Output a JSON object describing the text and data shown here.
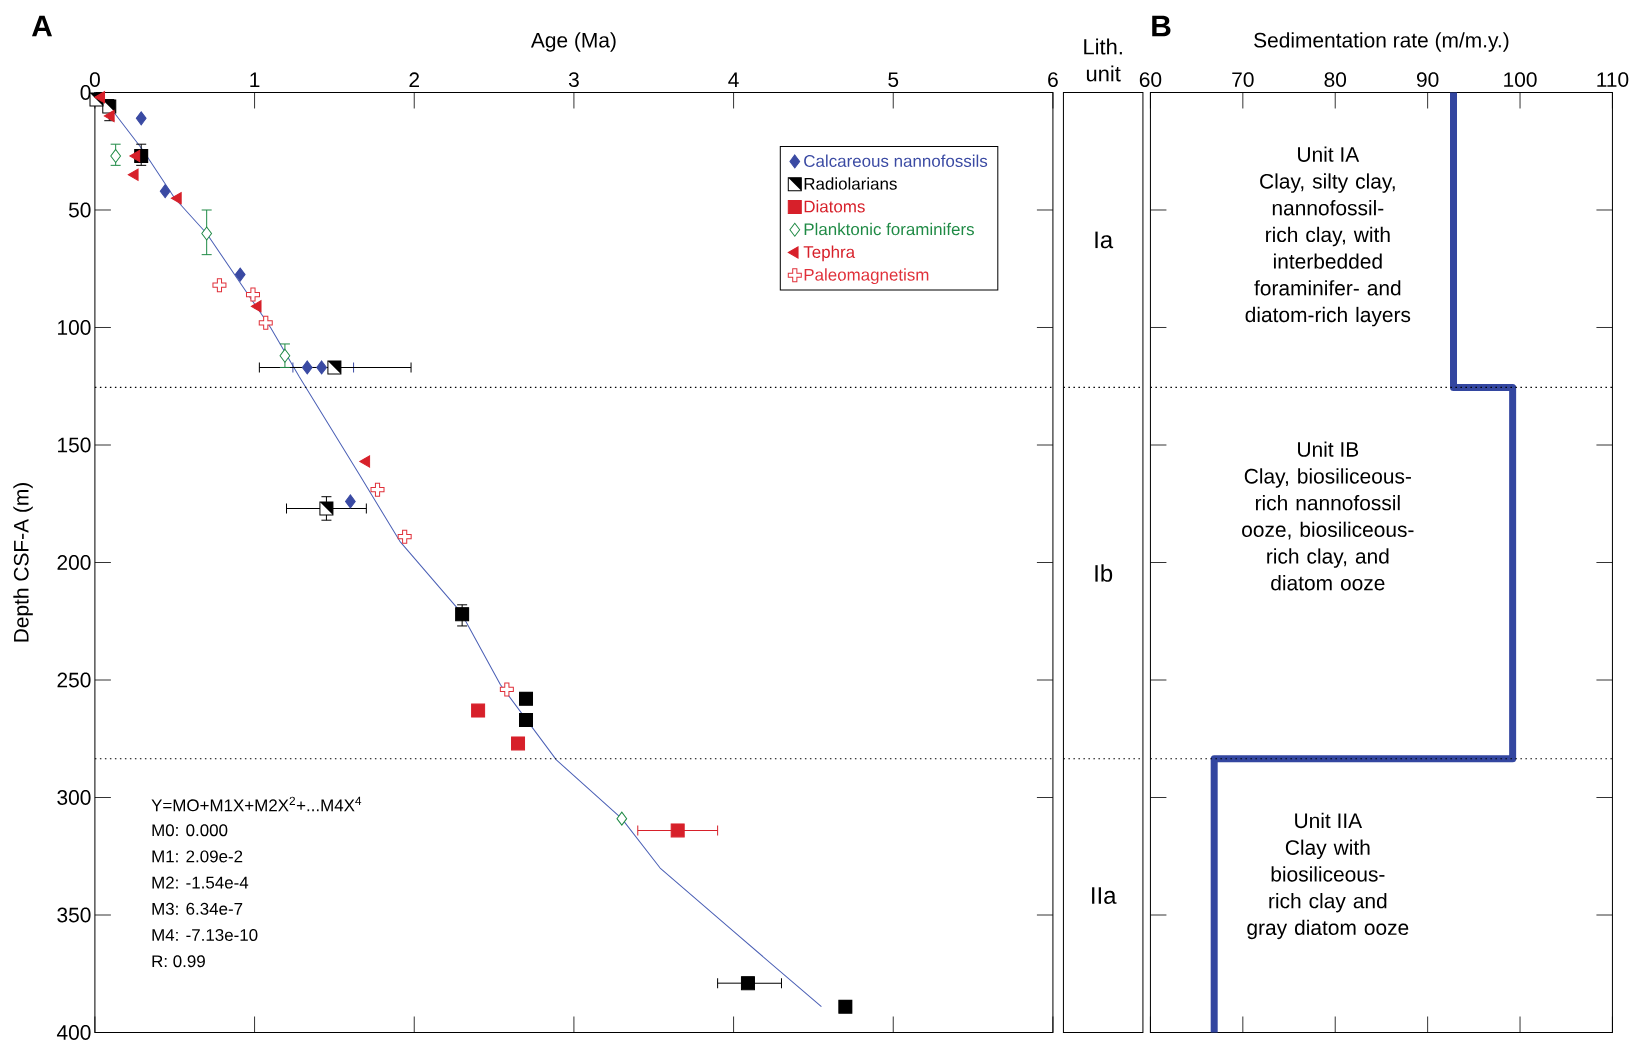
{
  "chart_data": [
    {
      "type": "scatter",
      "title": "A",
      "xlabel": "Age (Ma)",
      "ylabel": "Depth CSF-A (m)",
      "xlim": [
        0,
        6
      ],
      "xticks": [
        0,
        1,
        2,
        3,
        4,
        5,
        6
      ],
      "ylim": [
        400,
        0
      ],
      "yticks": [
        0,
        50,
        100,
        150,
        200,
        250,
        300,
        350,
        400
      ],
      "legend": "top right",
      "series": [
        {
          "type": "line",
          "color": "#4a5fb5",
          "marker": "none",
          "x": [
            0,
            0.08,
            0.3,
            0.5,
            0.7,
            1.1,
            1.28,
            1.66,
            1.91,
            2.29,
            2.54,
            2.89,
            3.3,
            3.54,
            4.0,
            4.55
          ],
          "values": [
            0,
            5,
            24.5,
            45,
            60,
            100,
            121,
            163,
            191,
            221,
            252,
            284,
            309,
            330,
            357,
            389
          ]
        },
        {
          "name": "Calcareous nannofossils",
          "color": "#3a4aa3",
          "marker": "diamond",
          "x": [
            0.29,
            0.44,
            0.91,
            1.33,
            1.42,
            1.6
          ],
          "values": [
            11,
            42,
            77.5,
            117,
            117,
            174
          ],
          "xerrors": [
            null,
            null,
            null,
            null,
            [
              1.24,
              1.62
            ],
            null
          ]
        },
        {
          "name": "Radiolarians",
          "color": "#000000",
          "marker": "square",
          "x": [
            0.01,
            0.09,
            0.29,
            1.5,
            1.45,
            2.3,
            2.7,
            2.7,
            4.09,
            4.7
          ],
          "values": [
            3,
            6,
            27,
            117,
            177,
            222,
            258,
            267,
            379,
            389
          ],
          "errors": [
            null,
            [
              3,
              12
            ],
            [
              22,
              31
            ],
            null,
            [
              172,
              182
            ],
            [
              218,
              227
            ],
            null,
            null,
            null,
            null
          ],
          "xerrors": [
            null,
            null,
            null,
            [
              1.03,
              1.98
            ],
            [
              1.2,
              1.7
            ],
            null,
            null,
            null,
            [
              3.9,
              4.3
            ],
            null
          ]
        },
        {
          "name": "Diatoms",
          "color": "#d7202a",
          "marker": "square",
          "x": [
            2.4,
            2.65,
            3.65
          ],
          "values": [
            263,
            277,
            314
          ],
          "xerrors": [
            null,
            null,
            [
              3.4,
              3.9
            ]
          ]
        },
        {
          "name": "Planktonic foraminifers",
          "color": "#1f8a45",
          "marker": "diamond",
          "x": [
            0.13,
            0.7,
            1.19,
            3.3
          ],
          "values": [
            27,
            60,
            112,
            309
          ],
          "errors": [
            [
              22,
              31
            ],
            [
              50,
              69
            ],
            [
              107,
              117
            ],
            null
          ]
        },
        {
          "name": "Tephra",
          "color": "#d7202a",
          "marker": "triangle",
          "x": [
            0.04,
            0.1,
            0.26,
            0.25,
            0.52,
            1.02,
            1.7
          ],
          "values": [
            2,
            10,
            27,
            35,
            45,
            91,
            157
          ]
        },
        {
          "name": "Paleomagnetism",
          "color": "#e0303a",
          "marker": "cross",
          "x": [
            0.78,
            0.99,
            1.07,
            1.77,
            1.94,
            2.58
          ],
          "values": [
            82,
            86,
            98,
            169,
            189,
            254
          ]
        }
      ],
      "ref_lines": [
        {
          "axis": "y",
          "value": 125.5,
          "color": "#000000",
          "line_style": "dotted"
        },
        {
          "axis": "y",
          "value": 283.5,
          "color": "#000000",
          "line_style": "dotted"
        }
      ],
      "annotations": [
        "Y=MO+M1X+M2X$^{2}$+...M4X$^{4}$",
        "M0: 0.000",
        "M1: 2.09e-2",
        "M2: -1.54e-4",
        "M3: 6.34e-7",
        "M4: -7.13e-10",
        "R: 0.99"
      ]
    },
    {
      "type": "other",
      "title": "Lith. unit",
      "annotations": [
        "Ia",
        "Ib",
        "IIa"
      ]
    },
    {
      "type": "step",
      "title": "B",
      "xlabel": "Sedimentation rate (m/m.y.)",
      "orientation": "horizontal",
      "xlim": [
        60,
        110
      ],
      "xticks": [
        60,
        70,
        80,
        90,
        100,
        110
      ],
      "ylim": [
        400,
        0
      ],
      "yticks": [
        0,
        50,
        100,
        150,
        200,
        250,
        300,
        350,
        400
      ],
      "tick_labels": "x",
      "series": [
        {
          "color": "#3346a0",
          "x": [
            0,
            125.5,
            283.5,
            400
          ],
          "values": [
            92.8,
            99.2,
            66.9,
            66.9
          ]
        }
      ],
      "ref_lines": [
        {
          "axis": "y",
          "value": 125.5,
          "color": "#000000",
          "line_style": "dotted"
        },
        {
          "axis": "y",
          "value": 283.5,
          "color": "#000000",
          "line_style": "dotted"
        }
      ],
      "annotations": [
        "Unit IA",
        "Clay, silty clay, nannofossil-rich clay, with interbedded foraminifer- and diatom-rich layers",
        "Unit IB",
        "Clay, biosiliceous-rich nannofossil ooze, biosiliceous-rich clay, and diatom ooze",
        "Unit IIA",
        "Clay with biosiliceous-rich clay and gray diatom ooze"
      ]
    }
  ]
}
